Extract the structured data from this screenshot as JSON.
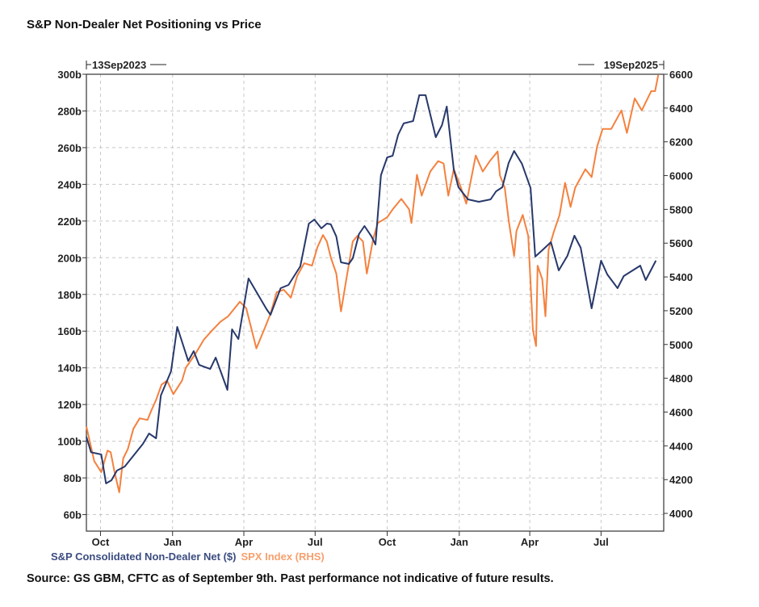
{
  "chart_data": {
    "type": "line",
    "title": "S&P Non-Dealer Net Positioning vs Price",
    "start_label": "13Sep2023",
    "end_label": "19Sep2025",
    "xlim": [
      0,
      737
    ],
    "x_ticks": [
      {
        "label": "Oct",
        "x": 18
      },
      {
        "label": "Jan",
        "x": 110
      },
      {
        "label": "Apr",
        "x": 201
      },
      {
        "label": "Jul",
        "x": 292
      },
      {
        "label": "Oct",
        "x": 384
      },
      {
        "label": "Jan",
        "x": 476
      },
      {
        "label": "Apr",
        "x": 566
      },
      {
        "label": "Jul",
        "x": 657
      }
    ],
    "y_left": {
      "lim": [
        51,
        300
      ],
      "ticks": [
        60,
        80,
        100,
        120,
        140,
        160,
        180,
        200,
        220,
        240,
        260,
        280,
        300
      ],
      "suffix": "b"
    },
    "y_right": {
      "lim": [
        3895,
        6600
      ],
      "ticks": [
        4000,
        4200,
        4400,
        4600,
        4800,
        5000,
        5200,
        5400,
        5600,
        5800,
        6000,
        6200,
        6400,
        6600
      ]
    },
    "grid": true,
    "legend_position": "bottom-left",
    "series": [
      {
        "name": "S&P Consolidated Non-Dealer Net ($)",
        "axis": "left",
        "color": "#27386b",
        "x": [
          0,
          6,
          19,
          25,
          32,
          39,
          49,
          72,
          80,
          89,
          95,
          108,
          116,
          130,
          137,
          144,
          158,
          165,
          180,
          186,
          194,
          207,
          230,
          235,
          248,
          258,
          273,
          284,
          291,
          300,
          307,
          312,
          319,
          325,
          335,
          340,
          348,
          355,
          364,
          369,
          376,
          384,
          391,
          398,
          405,
          417,
          425,
          433,
          446,
          454,
          460,
          469,
          475,
          487,
          501,
          516,
          523,
          531,
          539,
          546,
          556,
          567,
          573,
          582,
          593,
          603,
          614,
          623,
          631,
          645,
          657,
          665,
          678,
          686,
          707,
          714,
          727
        ],
        "y": [
          102.4,
          94,
          92.8,
          77,
          78.7,
          84,
          86.2,
          98.5,
          104.2,
          101.6,
          124.9,
          138.1,
          162.3,
          143.8,
          149.1,
          141.6,
          139.4,
          145.6,
          128,
          161,
          155.7,
          188.7,
          172,
          168.9,
          183.4,
          185.2,
          195.3,
          218.6,
          220.8,
          216,
          218.6,
          218.2,
          211.6,
          197.5,
          196.6,
          199.7,
          212.9,
          217.3,
          211.6,
          207.2,
          245,
          254.7,
          255.6,
          267,
          273.2,
          274.5,
          288.6,
          288.6,
          265.7,
          272.3,
          282.4,
          248.1,
          238.4,
          231.8,
          230.5,
          231.8,
          236.2,
          238.4,
          251.6,
          258.2,
          251.2,
          238,
          200.6,
          204.1,
          208.5,
          193.1,
          201,
          212,
          205.4,
          172.4,
          198.4,
          190.9,
          183.4,
          190,
          195.7,
          187.8,
          198.4
        ]
      },
      {
        "name": "SPX Index (RHS)",
        "axis": "right",
        "color": "#f4813e",
        "x": [
          0,
          3,
          10,
          19,
          27,
          31,
          36,
          42,
          47,
          53,
          60,
          68,
          78,
          83,
          89,
          96,
          103,
          111,
          122,
          127,
          139,
          150,
          161,
          171,
          181,
          196,
          204,
          217,
          228,
          235,
          243,
          252,
          261,
          269,
          278,
          288,
          295,
          302,
          307,
          312,
          319,
          325,
          333,
          340,
          346,
          353,
          358,
          366,
          372,
          384,
          391,
          402,
          412,
          415,
          422,
          428,
          439,
          449,
          456,
          462,
          469,
          477,
          485,
          489,
          497,
          506,
          515,
          525,
          528,
          534,
          539,
          546,
          549,
          557,
          564,
          570,
          574,
          576,
          582,
          586,
          590,
          597,
          604,
          611,
          618,
          624,
          637,
          645,
          652,
          659,
          670,
          683,
          690,
          700,
          709,
          721,
          726,
          730
        ],
        "y": [
          4515,
          4453,
          4310,
          4244,
          4372,
          4362,
          4244,
          4125,
          4325,
          4382,
          4501,
          4563,
          4553,
          4610,
          4672,
          4763,
          4786,
          4706,
          4786,
          4863,
          4944,
          5029,
          5086,
          5134,
          5167,
          5253,
          5215,
          4977,
          5101,
          5182,
          5310,
          5324,
          5277,
          5405,
          5481,
          5467,
          5577,
          5648,
          5610,
          5515,
          5420,
          5196,
          5420,
          5610,
          5643,
          5610,
          5420,
          5624,
          5719,
          5753,
          5800,
          5862,
          5800,
          5719,
          6005,
          5881,
          6024,
          6086,
          6072,
          5881,
          6038,
          5943,
          5834,
          5929,
          6119,
          6024,
          6086,
          6143,
          6000,
          5929,
          5738,
          5524,
          5672,
          5767,
          5643,
          5086,
          4991,
          5467,
          5386,
          5167,
          5562,
          5672,
          5767,
          5957,
          5815,
          5929,
          6038,
          5991,
          6172,
          6276,
          6276,
          6386,
          6253,
          6457,
          6386,
          6500,
          6500,
          6595
        ]
      }
    ]
  },
  "footer": {
    "source": "Source: GS GBM, CFTC as of September 9th. Past performance not indicative of future results."
  }
}
